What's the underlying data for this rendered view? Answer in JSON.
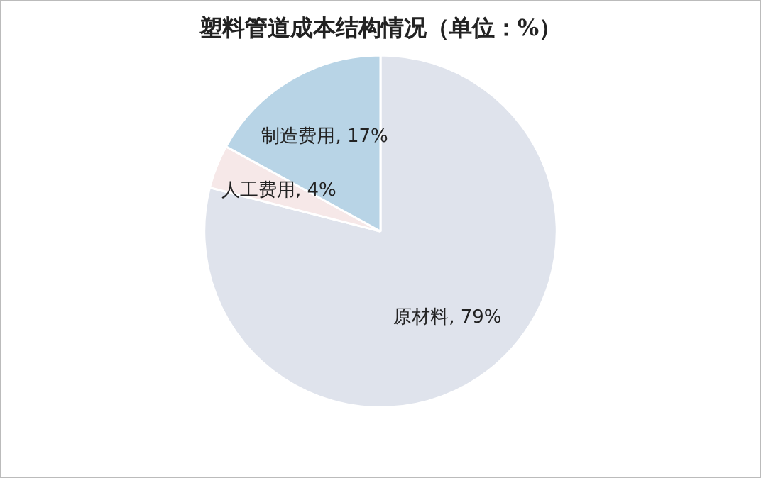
{
  "chart_data": {
    "type": "pie",
    "title": "塑料管道成本结构情况（单位：%）",
    "categories": [
      "原材料",
      "人工费用",
      "制造费用"
    ],
    "values": [
      79,
      4,
      17
    ],
    "colors": [
      "#dfe3ec",
      "#f6e8e8",
      "#b8d4e6"
    ],
    "value_labels": [
      "79%",
      "4%",
      "17%"
    ],
    "legend": false
  }
}
